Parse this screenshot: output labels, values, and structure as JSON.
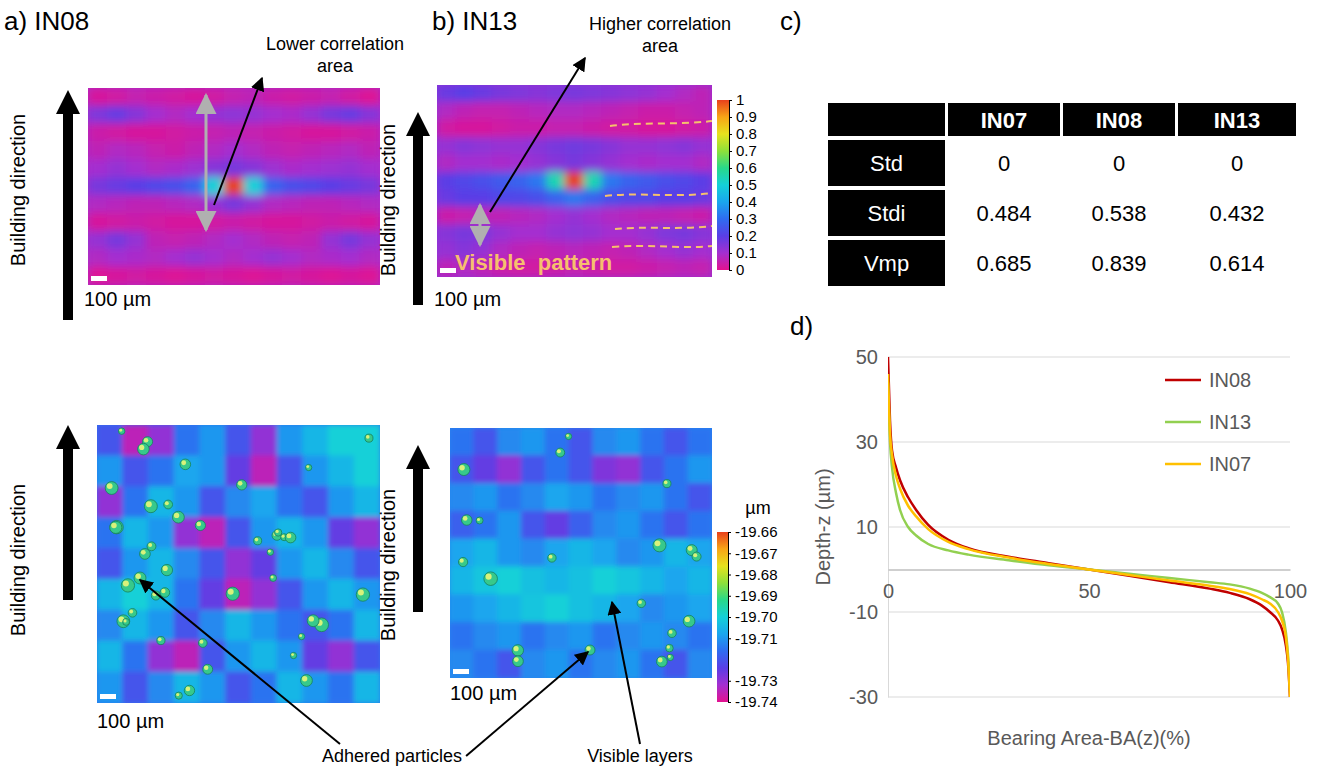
{
  "maps": [
    {
      "kind": "correlation",
      "label": "a) IN08",
      "annotation": "Lower correlation area",
      "direction_label": "Building direction",
      "scale_bar": "100 µm",
      "cells": [
        [
          0.02,
          0.03,
          0.05,
          0.04,
          0.03,
          0.02,
          0.03,
          0.05,
          0.06,
          0.04,
          0.03,
          0.04,
          0.05,
          0.03,
          0.01
        ],
        [
          0.15,
          0.18,
          0.14,
          0.1,
          0.08,
          0.1,
          0.12,
          0.13,
          0.12,
          0.1,
          0.09,
          0.12,
          0.16,
          0.18,
          0.14
        ],
        [
          0.04,
          0.03,
          0.02,
          0.02,
          0.03,
          0.04,
          0.05,
          0.06,
          0.05,
          0.04,
          0.03,
          0.02,
          0.02,
          0.03,
          0.04
        ],
        [
          0.06,
          0.08,
          0.07,
          0.05,
          0.04,
          0.06,
          0.08,
          0.1,
          0.08,
          0.06,
          0.05,
          0.06,
          0.07,
          0.08,
          0.06
        ],
        [
          0.1,
          0.12,
          0.1,
          0.08,
          0.09,
          0.11,
          0.14,
          0.16,
          0.14,
          0.11,
          0.09,
          0.1,
          0.11,
          0.12,
          0.1
        ],
        [
          0.16,
          0.18,
          0.2,
          0.22,
          0.24,
          0.28,
          0.5,
          1,
          0.5,
          0.28,
          0.24,
          0.22,
          0.2,
          0.18,
          0.16
        ],
        [
          0.08,
          0.07,
          0.06,
          0.06,
          0.07,
          0.08,
          0.12,
          0.16,
          0.12,
          0.08,
          0.07,
          0.06,
          0.06,
          0.07,
          0.08
        ],
        [
          0.02,
          0.03,
          0.04,
          0.03,
          0.02,
          0.02,
          0.03,
          0.04,
          0.03,
          0.02,
          0.02,
          0.03,
          0.04,
          0.03,
          0.02
        ],
        [
          0.12,
          0.16,
          0.12,
          0.06,
          0.05,
          0.06,
          0.08,
          0.1,
          0.08,
          0.06,
          0.05,
          0.06,
          0.12,
          0.16,
          0.12
        ],
        [
          0.08,
          0.1,
          0.09,
          0.08,
          0.1,
          0.12,
          0.1,
          0.08,
          0.1,
          0.12,
          0.1,
          0.08,
          0.09,
          0.1,
          0.08
        ],
        [
          0.01,
          0.02,
          0.03,
          0.02,
          0.01,
          0.02,
          0.03,
          0.02,
          0.01,
          0.02,
          0.03,
          0.02,
          0.01,
          0.02,
          0.01
        ]
      ]
    },
    {
      "kind": "correlation",
      "label": "b) IN13",
      "annotation": "Higher correlation area",
      "pattern_label": "Visible  pattern",
      "direction_label": "Building direction",
      "scale_bar": "100 µm",
      "cells": [
        [
          0.18,
          0.2,
          0.18,
          0.16,
          0.15,
          0.14,
          0.15,
          0.16,
          0.15,
          0.14,
          0.13,
          0.12,
          0.1,
          0.08,
          0.06
        ],
        [
          0.08,
          0.06,
          0.05,
          0.05,
          0.06,
          0.07,
          0.08,
          0.08,
          0.07,
          0.06,
          0.05,
          0.04,
          0.04,
          0.05,
          0.06
        ],
        [
          0.03,
          0.02,
          0.02,
          0.03,
          0.04,
          0.04,
          0.05,
          0.05,
          0.04,
          0.03,
          0.03,
          0.02,
          0.02,
          0.03,
          0.04
        ],
        [
          0.12,
          0.14,
          0.13,
          0.12,
          0.12,
          0.14,
          0.16,
          0.17,
          0.16,
          0.14,
          0.12,
          0.12,
          0.13,
          0.14,
          0.12
        ],
        [
          0.08,
          0.1,
          0.1,
          0.09,
          0.1,
          0.12,
          0.14,
          0.16,
          0.14,
          0.12,
          0.1,
          0.09,
          0.1,
          0.1,
          0.08
        ],
        [
          0.2,
          0.22,
          0.24,
          0.26,
          0.28,
          0.32,
          0.55,
          1,
          0.55,
          0.32,
          0.28,
          0.26,
          0.24,
          0.22,
          0.2
        ],
        [
          0.18,
          0.2,
          0.2,
          0.22,
          0.22,
          0.24,
          0.28,
          0.32,
          0.28,
          0.24,
          0.22,
          0.22,
          0.2,
          0.2,
          0.18
        ],
        [
          0.04,
          0.05,
          0.06,
          0.06,
          0.07,
          0.08,
          0.1,
          0.12,
          0.1,
          0.08,
          0.07,
          0.06,
          0.06,
          0.05,
          0.04
        ],
        [
          0.14,
          0.16,
          0.15,
          0.12,
          0.1,
          0.1,
          0.12,
          0.13,
          0.12,
          0.1,
          0.1,
          0.12,
          0.15,
          0.16,
          0.14
        ],
        [
          0.12,
          0.14,
          0.12,
          0.08,
          0.06,
          0.05,
          0.06,
          0.07,
          0.06,
          0.05,
          0.06,
          0.08,
          0.1,
          0.12,
          0.1
        ],
        [
          0.06,
          0.08,
          0.06,
          0.04,
          0.03,
          0.03,
          0.04,
          0.05,
          0.04,
          0.03,
          0.03,
          0.04,
          0.05,
          0.06,
          0.05
        ]
      ]
    },
    {
      "kind": "height",
      "direction_label": "Building direction",
      "scale_bar": "100 µm",
      "cells": [
        [
          -19.72,
          -19.735,
          -19.73,
          -19.715,
          -19.71,
          -19.72,
          -19.73,
          -19.71,
          -19.705,
          -19.7,
          -19.7
        ],
        [
          -19.71,
          -19.72,
          -19.715,
          -19.708,
          -19.71,
          -19.725,
          -19.735,
          -19.72,
          -19.71,
          -19.705,
          -19.7
        ],
        [
          -19.73,
          -19.715,
          -19.705,
          -19.71,
          -19.72,
          -19.712,
          -19.708,
          -19.715,
          -19.72,
          -19.71,
          -19.705
        ],
        [
          -19.715,
          -19.705,
          -19.71,
          -19.73,
          -19.735,
          -19.72,
          -19.71,
          -19.705,
          -19.71,
          -19.725,
          -19.73
        ],
        [
          -19.72,
          -19.71,
          -19.705,
          -19.712,
          -19.72,
          -19.73,
          -19.725,
          -19.71,
          -19.705,
          -19.712,
          -19.72
        ],
        [
          -19.705,
          -19.7,
          -19.705,
          -19.715,
          -19.725,
          -19.735,
          -19.73,
          -19.72,
          -19.71,
          -19.705,
          -19.71
        ],
        [
          -19.712,
          -19.705,
          -19.71,
          -19.72,
          -19.712,
          -19.705,
          -19.71,
          -19.715,
          -19.72,
          -19.715,
          -19.705
        ],
        [
          -19.705,
          -19.715,
          -19.73,
          -19.735,
          -19.72,
          -19.71,
          -19.705,
          -19.71,
          -19.725,
          -19.73,
          -19.72
        ],
        [
          -19.71,
          -19.72,
          -19.712,
          -19.705,
          -19.71,
          -19.72,
          -19.715,
          -19.705,
          -19.71,
          -19.715,
          -19.705
        ]
      ]
    },
    {
      "kind": "height",
      "direction_label": "Building direction",
      "scale_bar": "100 µm",
      "cells": [
        [
          -19.715,
          -19.72,
          -19.712,
          -19.71,
          -19.715,
          -19.72,
          -19.712,
          -19.71,
          -19.715,
          -19.72,
          -19.715
        ],
        [
          -19.72,
          -19.725,
          -19.73,
          -19.72,
          -19.715,
          -19.72,
          -19.728,
          -19.73,
          -19.72,
          -19.715,
          -19.71
        ],
        [
          -19.712,
          -19.71,
          -19.715,
          -19.712,
          -19.708,
          -19.71,
          -19.715,
          -19.712,
          -19.71,
          -19.715,
          -19.72
        ],
        [
          -19.718,
          -19.715,
          -19.71,
          -19.72,
          -19.725,
          -19.718,
          -19.712,
          -19.71,
          -19.715,
          -19.72,
          -19.715
        ],
        [
          -19.708,
          -19.705,
          -19.71,
          -19.712,
          -19.708,
          -19.705,
          -19.708,
          -19.712,
          -19.71,
          -19.705,
          -19.708
        ],
        [
          -19.705,
          -19.702,
          -19.7,
          -19.703,
          -19.705,
          -19.703,
          -19.7,
          -19.702,
          -19.705,
          -19.708,
          -19.705
        ],
        [
          -19.71,
          -19.708,
          -19.705,
          -19.702,
          -19.7,
          -19.703,
          -19.705,
          -19.708,
          -19.712,
          -19.71,
          -19.708
        ],
        [
          -19.715,
          -19.712,
          -19.71,
          -19.715,
          -19.712,
          -19.71,
          -19.715,
          -19.712,
          -19.71,
          -19.712,
          -19.715
        ],
        [
          -19.712,
          -19.715,
          -19.72,
          -19.712,
          -19.71,
          -19.715,
          -19.712,
          -19.71,
          -19.715,
          -19.72,
          -19.712
        ]
      ]
    }
  ],
  "correlation_colorbar": {
    "range": [
      0,
      1
    ],
    "ticks": [
      0,
      0.1,
      0.2,
      0.3,
      0.4,
      0.5,
      0.6,
      0.7,
      0.8,
      0.9,
      1
    ]
  },
  "height_colorbar": {
    "title": "µm",
    "range": [
      -19.74,
      -19.66
    ],
    "ticks": [
      -19.66,
      -19.67,
      -19.68,
      -19.69,
      {
        "value": -19.7,
        "label": "-19.70"
      },
      -19.71,
      -19.73,
      -19.74
    ]
  },
  "callouts": {
    "particles": "Adhered particles",
    "layers": "Visible layers"
  },
  "table": {
    "label": "c)",
    "columns": [
      "IN07",
      "IN08",
      "IN13"
    ],
    "rows": [
      {
        "name": "Std",
        "values": [
          0,
          0,
          0
        ]
      },
      {
        "name": "Stdi",
        "values": [
          0.484,
          0.538,
          0.432
        ]
      },
      {
        "name": "Vmp",
        "values": [
          0.685,
          0.839,
          0.614
        ]
      }
    ]
  },
  "chart_data": {
    "type": "line",
    "label": "d)",
    "x_label": "Bearing Area-BA(z)(%)",
    "y_label": "Depth-z (µm)",
    "x": [
      0,
      0.5,
      1,
      2,
      3,
      5,
      7,
      10,
      15,
      20,
      30,
      40,
      50,
      60,
      70,
      80,
      85,
      90,
      93,
      95,
      97,
      98,
      99,
      99.5,
      100
    ],
    "xlim": [
      0,
      100
    ],
    "xticks": [
      0,
      50,
      100
    ],
    "ylim": [
      -30,
      50
    ],
    "yticks": [
      -30,
      -10,
      10,
      30,
      50
    ],
    "grid": true,
    "legend": "upper right",
    "series": [
      {
        "name": "IN08",
        "color": "#c00000",
        "values": [
          50,
          35,
          28,
          24,
          21,
          17,
          14,
          10.5,
          7,
          5,
          3,
          1.5,
          0,
          -1.5,
          -3,
          -4.5,
          -5.5,
          -7,
          -8.5,
          -10,
          -12,
          -14,
          -18,
          -22,
          -30
        ]
      },
      {
        "name": "IN13",
        "color": "#92d050",
        "values": [
          44,
          30,
          24,
          18,
          14,
          10,
          8,
          6,
          4.5,
          3.5,
          2.2,
          1,
          0,
          -1,
          -2,
          -3,
          -3.5,
          -4.5,
          -5.5,
          -6.5,
          -8,
          -10,
          -15,
          -20,
          -28
        ]
      },
      {
        "name": "IN07",
        "color": "#ffc000",
        "values": [
          46,
          32,
          27,
          22,
          19,
          15,
          12.5,
          9.5,
          6.5,
          4.8,
          2.8,
          1.3,
          0,
          -1.3,
          -2.6,
          -3.8,
          -4.6,
          -5.8,
          -7,
          -8,
          -10,
          -12,
          -16,
          -21,
          -30
        ]
      }
    ]
  }
}
